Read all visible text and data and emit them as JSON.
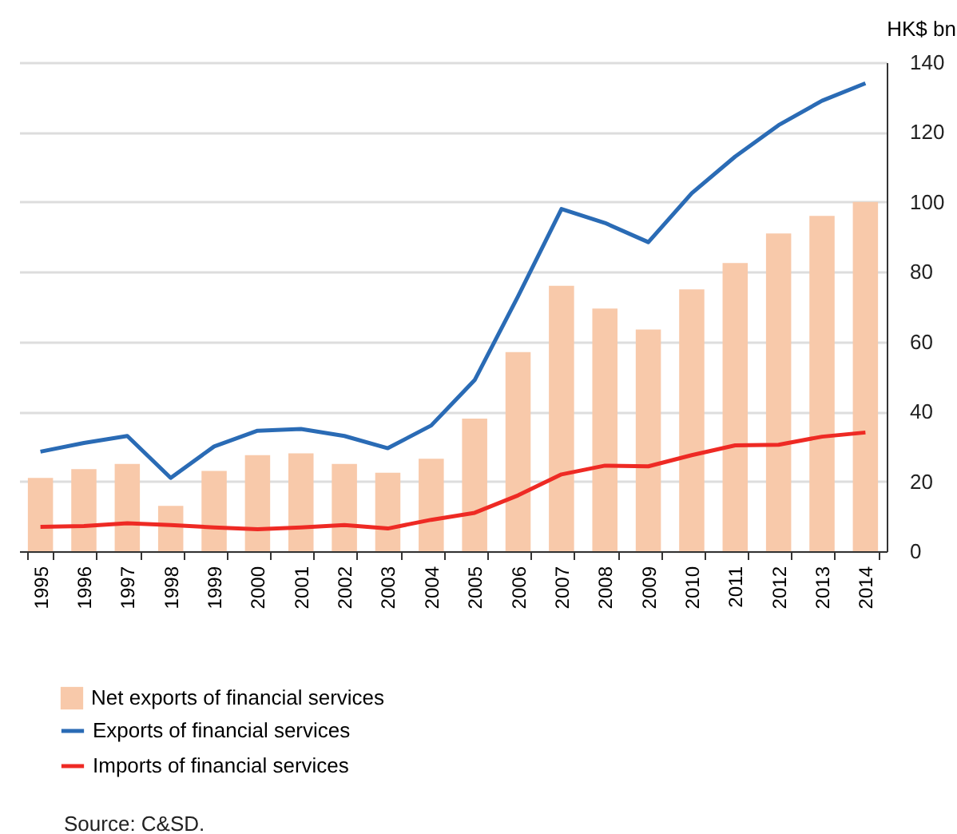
{
  "chart_data": {
    "type": "bar",
    "ylabel": "HK$ bn",
    "categories": [
      "1995",
      "1996",
      "1997",
      "1998",
      "1999",
      "2000",
      "2001",
      "2002",
      "2003",
      "2004",
      "2005",
      "2006",
      "2007",
      "2008",
      "2009",
      "2010",
      "2011",
      "2012",
      "2013",
      "2014"
    ],
    "series": [
      {
        "name": "Net exports of financial services",
        "color": "#f8c9aa",
        "values": [
          21,
          23.5,
          25,
          13,
          23,
          27.5,
          28,
          25,
          22.5,
          26.5,
          38,
          57,
          76,
          69.5,
          63.5,
          75,
          82.5,
          91,
          96,
          100
        ]
      },
      {
        "name": "Exports of financial services",
        "type": "line",
        "color": "#2a6bb5",
        "values": [
          28.5,
          31,
          33,
          21,
          30,
          34.5,
          35,
          33,
          29.5,
          36,
          49,
          73,
          98,
          94,
          88.5,
          102.5,
          113,
          122,
          129,
          134
        ]
      },
      {
        "name": "Imports of financial services",
        "type": "line",
        "color": "#ee2a24",
        "values": [
          7,
          7.2,
          8,
          7.5,
          6.8,
          6.3,
          6.8,
          7.5,
          6.5,
          9,
          11,
          16,
          22,
          24.5,
          24.3,
          27.5,
          30.3,
          30.5,
          32.8,
          34
        ]
      }
    ],
    "ylim": [
      0,
      140
    ],
    "yticks": [
      0,
      20,
      40,
      60,
      80,
      100,
      120,
      140
    ],
    "grid": "y",
    "legend": "bottom left",
    "annotations": [
      "Source: C&SD."
    ]
  }
}
